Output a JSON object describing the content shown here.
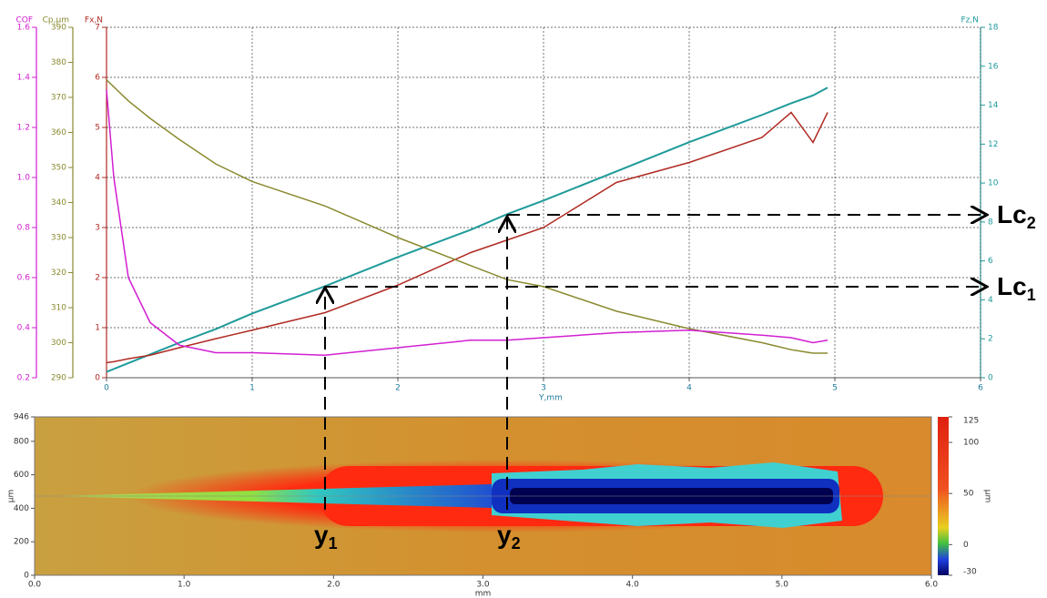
{
  "chart_data": [
    {
      "type": "line",
      "xlabel": "Y,mm",
      "ylabel": "Fx,N",
      "y2label": "Fz,N",
      "y3label": "Cp,μm",
      "y4label": "COF",
      "xlim": [
        0,
        6
      ],
      "xticks": [
        0,
        1,
        2,
        3,
        4,
        5,
        6
      ],
      "ylim": [
        0,
        7
      ],
      "yticks": [
        0,
        1,
        2,
        3,
        4,
        5,
        6,
        7
      ],
      "y2lim": [
        0,
        18
      ],
      "y2ticks": [
        0,
        2,
        4,
        6,
        8,
        10,
        12,
        14,
        16,
        18
      ],
      "y3lim": [
        290,
        390
      ],
      "y3ticks": [
        290,
        300,
        310,
        320,
        330,
        340,
        350,
        360,
        370,
        380,
        390
      ],
      "y4lim": [
        0.2,
        1.6
      ],
      "y4ticks": [
        0.2,
        0.4,
        0.6,
        0.8,
        {
          "value": 1.0,
          "label": "1.0"
        },
        1.2,
        1.4,
        1.6
      ],
      "grid": true,
      "x": [
        0,
        0.05,
        0.15,
        0.3,
        0.5,
        0.75,
        1,
        1.5,
        2,
        2.5,
        2.75,
        3,
        3.5,
        4,
        4.5,
        4.7,
        4.85,
        4.95
      ],
      "series": [
        {
          "name": "Fz,N",
          "axis": "y2",
          "color": "#1f9a9a",
          "values": [
            0.3,
            0.45,
            0.75,
            1.2,
            1.8,
            2.5,
            3.3,
            4.7,
            6.2,
            7.6,
            8.4,
            9.1,
            10.6,
            12.1,
            13.5,
            14.1,
            14.5,
            14.9
          ]
        },
        {
          "name": "Fx,N",
          "axis": "y",
          "color": "#b02a22",
          "values": [
            0.3,
            0.32,
            0.38,
            0.45,
            0.6,
            0.78,
            0.95,
            1.3,
            1.85,
            2.5,
            2.75,
            3.0,
            3.9,
            4.3,
            4.8,
            5.3,
            4.7,
            5.3
          ]
        },
        {
          "name": "Cp,μm",
          "axis": "y3",
          "color": "#8a8a30",
          "values": [
            375,
            373,
            369,
            364,
            358,
            351,
            346,
            339,
            330,
            322,
            318,
            316,
            309,
            304,
            300,
            298,
            297,
            297
          ]
        },
        {
          "name": "COF",
          "axis": "y4",
          "color": "#d21fd2",
          "values": [
            1.35,
            1.0,
            0.6,
            0.42,
            0.33,
            0.3,
            0.3,
            0.29,
            0.32,
            0.35,
            0.35,
            0.36,
            0.38,
            0.39,
            0.37,
            0.36,
            0.34,
            0.35
          ]
        }
      ],
      "annotations": [
        {
          "text": "Lc",
          "sub": "2"
        },
        {
          "text": "Lc",
          "sub": "1"
        },
        {
          "text": "y",
          "sub": "1"
        },
        {
          "text": "y",
          "sub": "2"
        }
      ]
    },
    {
      "type": "heatmap",
      "xlabel": "mm",
      "ylabel": "μm",
      "xlim": [
        0,
        6
      ],
      "xticks": [
        {
          "value": 0,
          "label": "0.0"
        },
        {
          "value": 1,
          "label": "1.0"
        },
        {
          "value": 2,
          "label": "2.0"
        },
        {
          "value": 3,
          "label": "3.0"
        },
        {
          "value": 4,
          "label": "4.0"
        },
        {
          "value": 5,
          "label": "5.0"
        },
        {
          "value": 6,
          "label": "6.0"
        }
      ],
      "ylim": [
        0,
        946
      ],
      "yticks": [
        0,
        200,
        400,
        600,
        800,
        946
      ],
      "colorbar": {
        "label": "μm",
        "lim": [
          -30,
          125
        ],
        "ticks": [
          125,
          100,
          50,
          0,
          -30
        ]
      }
    }
  ]
}
